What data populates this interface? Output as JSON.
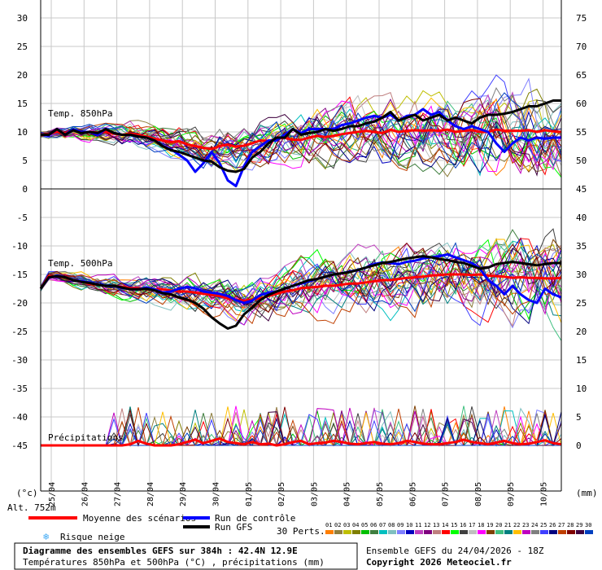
{
  "chart_data": [
    {
      "type": "line",
      "panel": "temp850",
      "label": "Temp. 850hPa",
      "left_ticks": [
        "30",
        "25",
        "20",
        "15",
        "10",
        "5",
        "0"
      ],
      "right_ticks": [
        "75",
        "70",
        "65",
        "60",
        "55",
        "50",
        "45"
      ],
      "ylim": [
        0,
        30
      ],
      "series": [
        {
          "name": "Moyenne des scénarios",
          "color": "#ff0000",
          "values": [
            9.5,
            9.6,
            10,
            9.8,
            10.3,
            9.9,
            10,
            9.9,
            10,
            9.7,
            9.5,
            9.7,
            9.5,
            9.2,
            8.8,
            8.5,
            8.2,
            8.4,
            7.8,
            7.5,
            7.2,
            7,
            7.5,
            7.8,
            7.4,
            7.6,
            8,
            8.5,
            8.4,
            8.8,
            9,
            8.6,
            8.6,
            9,
            9.3,
            9.1,
            9.3,
            9.6,
            9.8,
            10,
            10.2,
            10,
            9.8,
            10.4,
            10,
            10.2,
            10.3,
            10.2,
            10.3,
            10.2,
            10.4,
            10,
            10.2,
            10.3,
            10,
            10,
            10.4,
            10.2,
            10.2,
            10.2,
            10.3,
            10,
            10.3,
            10.1,
            10
          ]
        },
        {
          "name": "Run de contrôle",
          "color": "#0000ff",
          "values": [
            9.5,
            9.4,
            10.5,
            9.5,
            10.5,
            10,
            10,
            9.5,
            10.5,
            9.8,
            9.5,
            9.5,
            9.2,
            9,
            8.5,
            7.5,
            7,
            6,
            5,
            3,
            4.5,
            6.5,
            4.5,
            1.5,
            0.5,
            4,
            6.5,
            7.5,
            8.5,
            8.5,
            9.5,
            10.5,
            9.8,
            10.5,
            10.5,
            10.5,
            10.5,
            11.2,
            11.5,
            12,
            12.5,
            12.8,
            12.5,
            13,
            12,
            12.8,
            13,
            14,
            13,
            13.5,
            12,
            11,
            10.5,
            11,
            10.5,
            10,
            8,
            6.5,
            8,
            9,
            8.5,
            9,
            8.8,
            9,
            9
          ]
        },
        {
          "name": "Run GFS",
          "color": "#000000",
          "values": [
            9.5,
            9.5,
            10.5,
            9.5,
            10.3,
            9.8,
            10,
            9.8,
            10.5,
            9.8,
            9.5,
            9.5,
            9.2,
            9,
            8.5,
            7.5,
            6.8,
            6.5,
            6,
            5.5,
            5,
            4.8,
            3.8,
            3.2,
            3,
            3.5,
            5.5,
            6.5,
            8,
            9,
            9,
            10.5,
            9.5,
            9.8,
            10,
            10.5,
            10.2,
            10.5,
            11,
            11,
            11.5,
            11.8,
            12.5,
            13.5,
            12,
            12.5,
            13,
            12,
            12.5,
            13,
            12,
            12.5,
            12,
            11.5,
            12.5,
            13,
            13,
            13.2,
            13.5,
            14,
            14.5,
            14.5,
            15,
            15.5,
            15.5
          ]
        }
      ]
    },
    {
      "type": "line",
      "panel": "temp500",
      "label": "Temp. 500hPa",
      "left_ticks": [
        "-5",
        "-10",
        "-15",
        "-20",
        "-25",
        "-30",
        "-35",
        "-40",
        "-45"
      ],
      "right_ticks": [
        "40",
        "35",
        "30",
        "25",
        "20",
        "15",
        "10",
        "5",
        "0"
      ],
      "ylim": [
        -45,
        0
      ],
      "series": [
        {
          "name": "Moyenne des scénarios",
          "color": "#ff0000",
          "values": [
            -17.5,
            -15.3,
            -15.3,
            -15.6,
            -16,
            -16.2,
            -16.7,
            -16.8,
            -17,
            -17,
            -17.2,
            -17.4,
            -17.4,
            -17.5,
            -17.6,
            -17.6,
            -17.8,
            -18,
            -18,
            -18.2,
            -18.4,
            -18.6,
            -18.8,
            -19.2,
            -19.4,
            -19.6,
            -19.4,
            -19.2,
            -18.8,
            -18.4,
            -18,
            -17.8,
            -17.4,
            -17.3,
            -17.2,
            -17,
            -17,
            -16.8,
            -16.6,
            -16.6,
            -16.4,
            -16.2,
            -16,
            -16,
            -15.8,
            -15.6,
            -15.5,
            -15.4,
            -15.2,
            -15.1,
            -15,
            -15,
            -15,
            -15.1,
            -15,
            -15.2,
            -15.3,
            -15.4,
            -15.6,
            -15.5,
            -15.6,
            -15.6,
            -15.7,
            -15.7,
            -15.6
          ]
        },
        {
          "name": "Run de contrôle",
          "color": "#0000ff",
          "values": [
            -17.5,
            -15.6,
            -15.2,
            -15.5,
            -16,
            -16.2,
            -16.4,
            -16.8,
            -17,
            -17,
            -17.4,
            -17.6,
            -17.6,
            -17.3,
            -17.6,
            -18.2,
            -18,
            -17.5,
            -17.2,
            -17.4,
            -18,
            -18.2,
            -18.4,
            -18.8,
            -19.5,
            -20,
            -19.6,
            -18.6,
            -18.2,
            -18,
            -17.5,
            -17,
            -16.6,
            -16.2,
            -15.8,
            -15.4,
            -15,
            -14.8,
            -14.5,
            -14.2,
            -13.8,
            -13.2,
            -12.9,
            -13,
            -13.2,
            -12.8,
            -12.6,
            -12.2,
            -12,
            -11.8,
            -11.5,
            -12,
            -12.5,
            -13,
            -14,
            -16,
            -17,
            -18.5,
            -17,
            -18.5,
            -19.5,
            -20,
            -17.5,
            -18.5,
            -19
          ]
        },
        {
          "name": "Run GFS",
          "color": "#000000",
          "values": [
            -17.5,
            -15.5,
            -15.3,
            -15.5,
            -16,
            -16.3,
            -16.5,
            -16.8,
            -17,
            -17,
            -17.3,
            -17.6,
            -17.6,
            -17.5,
            -17.8,
            -18.3,
            -18.5,
            -19,
            -19.4,
            -20,
            -21,
            -22.5,
            -23.6,
            -24.5,
            -24,
            -22,
            -20.8,
            -19.5,
            -18.6,
            -18,
            -17.5,
            -17,
            -16.5,
            -16,
            -15.8,
            -15.4,
            -15,
            -14.8,
            -14.6,
            -14.2,
            -13.8,
            -13.4,
            -13,
            -12.8,
            -12.5,
            -12.2,
            -12,
            -11.8,
            -12,
            -12.3,
            -12.5,
            -12.8,
            -13,
            -13.5,
            -14,
            -13.8,
            -13.2,
            -13,
            -12.8,
            -13,
            -13.2,
            -13.4,
            -13.2,
            -13,
            -13
          ]
        }
      ]
    },
    {
      "type": "line",
      "panel": "precip",
      "label": "Précipitations",
      "right_ticks": [
        "15",
        "10",
        "5",
        "0"
      ],
      "ylim": [
        0,
        15
      ],
      "series": [
        {
          "name": "Moyenne des scénarios",
          "color": "#ff0000",
          "values": [
            0,
            0,
            0,
            0,
            0,
            0,
            0,
            0,
            0,
            0,
            0,
            0.2,
            0.8,
            0.3,
            0,
            0,
            0,
            0.2,
            0.6,
            1,
            0.4,
            0.8,
            1.2,
            0.6,
            0.4,
            0.2,
            0.6,
            0.2,
            0.3,
            0,
            0.2,
            0.6,
            0.8,
            0.2,
            0.4,
            0.5,
            0.8,
            0.6,
            0.3,
            0.2,
            0.4,
            0.6,
            0.3,
            0.2,
            0.4,
            0.8,
            0.6,
            0.3,
            0.2,
            0.2,
            0.4,
            0.6,
            1,
            0.6,
            0.4,
            0.2,
            0.5,
            0.8,
            0.4,
            0.2,
            0.3,
            0.6,
            0.9,
            0.4,
            0.2
          ]
        }
      ]
    }
  ],
  "left_axis_unit": "(°c)",
  "right_axis_unit": "(mm)",
  "dates": [
    "25/04",
    "26/04",
    "27/04",
    "28/04",
    "29/04",
    "30/04",
    "01/05",
    "02/05",
    "03/05",
    "04/05",
    "05/05",
    "06/05",
    "07/05",
    "08/05",
    "09/05",
    "10/05"
  ],
  "altitude": "Alt. 752m",
  "legend": {
    "mean": "Moyenne des scénarios",
    "control": "Run de contrôle",
    "gfs": "Run GFS",
    "snow": "Risque neige",
    "perts": "30 Perts.",
    "pert_numbers": [
      "01",
      "02",
      "03",
      "04",
      "05",
      "06",
      "07",
      "08",
      "09",
      "10",
      "11",
      "12",
      "13",
      "14",
      "15",
      "16",
      "17",
      "18",
      "19",
      "20",
      "21",
      "22",
      "23",
      "24",
      "25",
      "26",
      "27",
      "28",
      "29",
      "30"
    ],
    "pert_colors": [
      "#ff7f00",
      "#8f7f3f",
      "#bfbf00",
      "#7f7f00",
      "#00bf00",
      "#3f7f3f",
      "#00bfbf",
      "#7fbfbf",
      "#7f7fff",
      "#0000bf",
      "#bf3fbf",
      "#7f007f",
      "#bf7f7f",
      "#ff0000",
      "#00ff00",
      "#3f3f3f",
      "#bfbfbf",
      "#ff00ff",
      "#7f3f00",
      "#3fbf7f",
      "#007f7f",
      "#ffbf00",
      "#bf00bf",
      "#7f7f7f",
      "#3f3fff",
      "#00007f",
      "#bf3f00",
      "#7f0000",
      "#3f003f",
      "#003fbf"
    ]
  },
  "footer": {
    "line1": "Diagramme des ensembles GEFS sur 384h : 42.4N 12.9E",
    "line2": "Températures 850hPa et 500hPa (°C) , précipitations (mm)",
    "run": "Ensemble GEFS du 24/04/2026 - 18Z",
    "copyright": "Copyright 2026 Meteociel.fr"
  }
}
